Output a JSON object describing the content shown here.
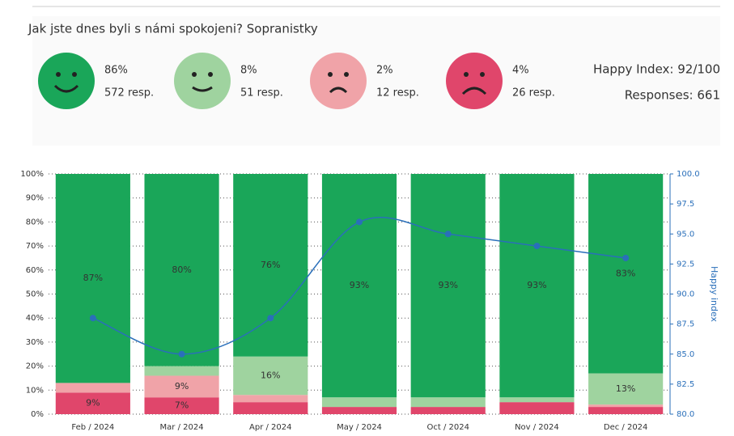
{
  "summary": {
    "title": "Jak jste dnes byli s námi spokojeni? Sopranistky",
    "items": [
      {
        "percent": "86%",
        "responses": "572 resp.",
        "color": "#1aa659"
      },
      {
        "percent": "8%",
        "responses": "51 resp.",
        "color": "#9fd39f"
      },
      {
        "percent": "2%",
        "responses": "12 resp.",
        "color": "#f0a3a8"
      },
      {
        "percent": "4%",
        "responses": "26 resp.",
        "color": "#e0466b"
      }
    ],
    "happy_index": "Happy Index: 92/100",
    "responses": "Responses: 661"
  },
  "chart_data": {
    "type": "bar",
    "stacked": true,
    "categories": [
      "Feb / 2024",
      "Mar / 2024",
      "Apr / 2024",
      "May / 2024",
      "Oct / 2024",
      "Nov / 2024",
      "Dec / 2024"
    ],
    "series": [
      {
        "color": "#e0466b",
        "values": [
          9,
          7,
          5,
          3,
          3,
          5,
          3
        ],
        "value_labels": [
          "9%",
          "7%",
          null,
          null,
          null,
          null,
          null
        ]
      },
      {
        "color": "#f0a3a8",
        "values": [
          4,
          9,
          3,
          0,
          0,
          0,
          1
        ],
        "value_labels": [
          null,
          "9%",
          null,
          null,
          null,
          null,
          null
        ]
      },
      {
        "color": "#9fd39f",
        "values": [
          0,
          4,
          16,
          4,
          4,
          2,
          13
        ],
        "value_labels": [
          null,
          null,
          "16%",
          null,
          null,
          null,
          "13%"
        ]
      },
      {
        "color": "#1aa659",
        "values": [
          87,
          80,
          76,
          93,
          93,
          93,
          83
        ],
        "value_labels": [
          "87%",
          "80%",
          "76%",
          "93%",
          "93%",
          "93%",
          "83%"
        ]
      },
      {
        "type": "line",
        "axis": "y2",
        "color": "#2a6fba",
        "values": [
          88,
          85,
          88,
          96,
          95,
          94,
          93
        ]
      }
    ],
    "ylim": [
      0,
      100
    ],
    "yticks": [
      {
        "value": 0,
        "label": "0%"
      },
      {
        "value": 10,
        "label": "10%"
      },
      {
        "value": 20,
        "label": "20%"
      },
      {
        "value": 30,
        "label": "30%"
      },
      {
        "value": 40,
        "label": "40%"
      },
      {
        "value": 50,
        "label": "50%"
      },
      {
        "value": 60,
        "label": "60%"
      },
      {
        "value": 70,
        "label": "70%"
      },
      {
        "value": 80,
        "label": "80%"
      },
      {
        "value": 90,
        "label": "90%"
      },
      {
        "value": 100,
        "label": "100%"
      }
    ],
    "y2lim": [
      80,
      100
    ],
    "y2ticks": [
      {
        "value": 80,
        "label": "80.0"
      },
      {
        "value": 82.5,
        "label": "82.5"
      },
      {
        "value": 85,
        "label": "85.0"
      },
      {
        "value": 87.5,
        "label": "87.5"
      },
      {
        "value": 90,
        "label": "90.0"
      },
      {
        "value": 92.5,
        "label": "92.5"
      },
      {
        "value": 95,
        "label": "95.0"
      },
      {
        "value": 97.5,
        "label": "97.5"
      },
      {
        "value": 100,
        "label": "100.0"
      }
    ],
    "y2label": "Happy index",
    "grid": true
  }
}
